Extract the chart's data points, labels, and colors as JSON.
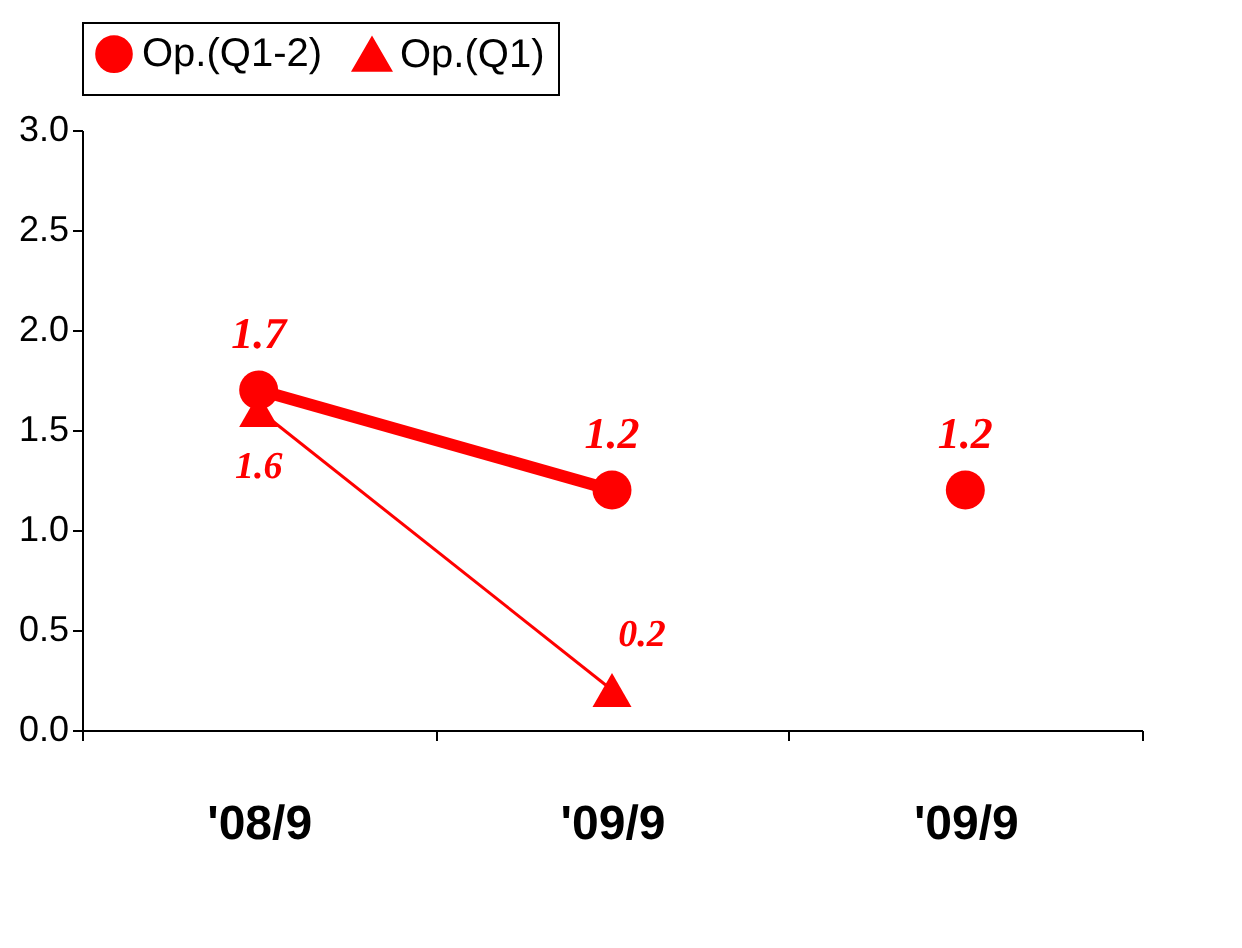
{
  "chart_data": {
    "type": "line",
    "categories": [
      "'08/9",
      "'09/9",
      "'09/9"
    ],
    "series": [
      {
        "name": "Op.(Q1-2)",
        "color": "#ff0000",
        "values": [
          1.7,
          1.2,
          null
        ],
        "marker": "circle"
      },
      {
        "name": "Op.(Q1)",
        "color": "#ff0000",
        "values": [
          1.6,
          0.2,
          null
        ],
        "marker": "triangle"
      },
      {
        "type": "scatter",
        "color": "#ff0000",
        "values": [
          null,
          null,
          1.2
        ],
        "marker": "circle"
      }
    ],
    "ylim": [
      0,
      3
    ],
    "yticks": [
      {
        "value": 0,
        "label": "0.0"
      },
      {
        "value": 0.5,
        "label": "0.5"
      },
      {
        "value": 1,
        "label": "1.0"
      },
      {
        "value": 1.5,
        "label": "1.5"
      },
      {
        "value": 2,
        "label": "2.0"
      },
      {
        "value": 2.5,
        "label": "2.5"
      },
      {
        "value": 3,
        "label": "3.0"
      }
    ],
    "grid": false,
    "legend": "top",
    "data_labels": true
  }
}
